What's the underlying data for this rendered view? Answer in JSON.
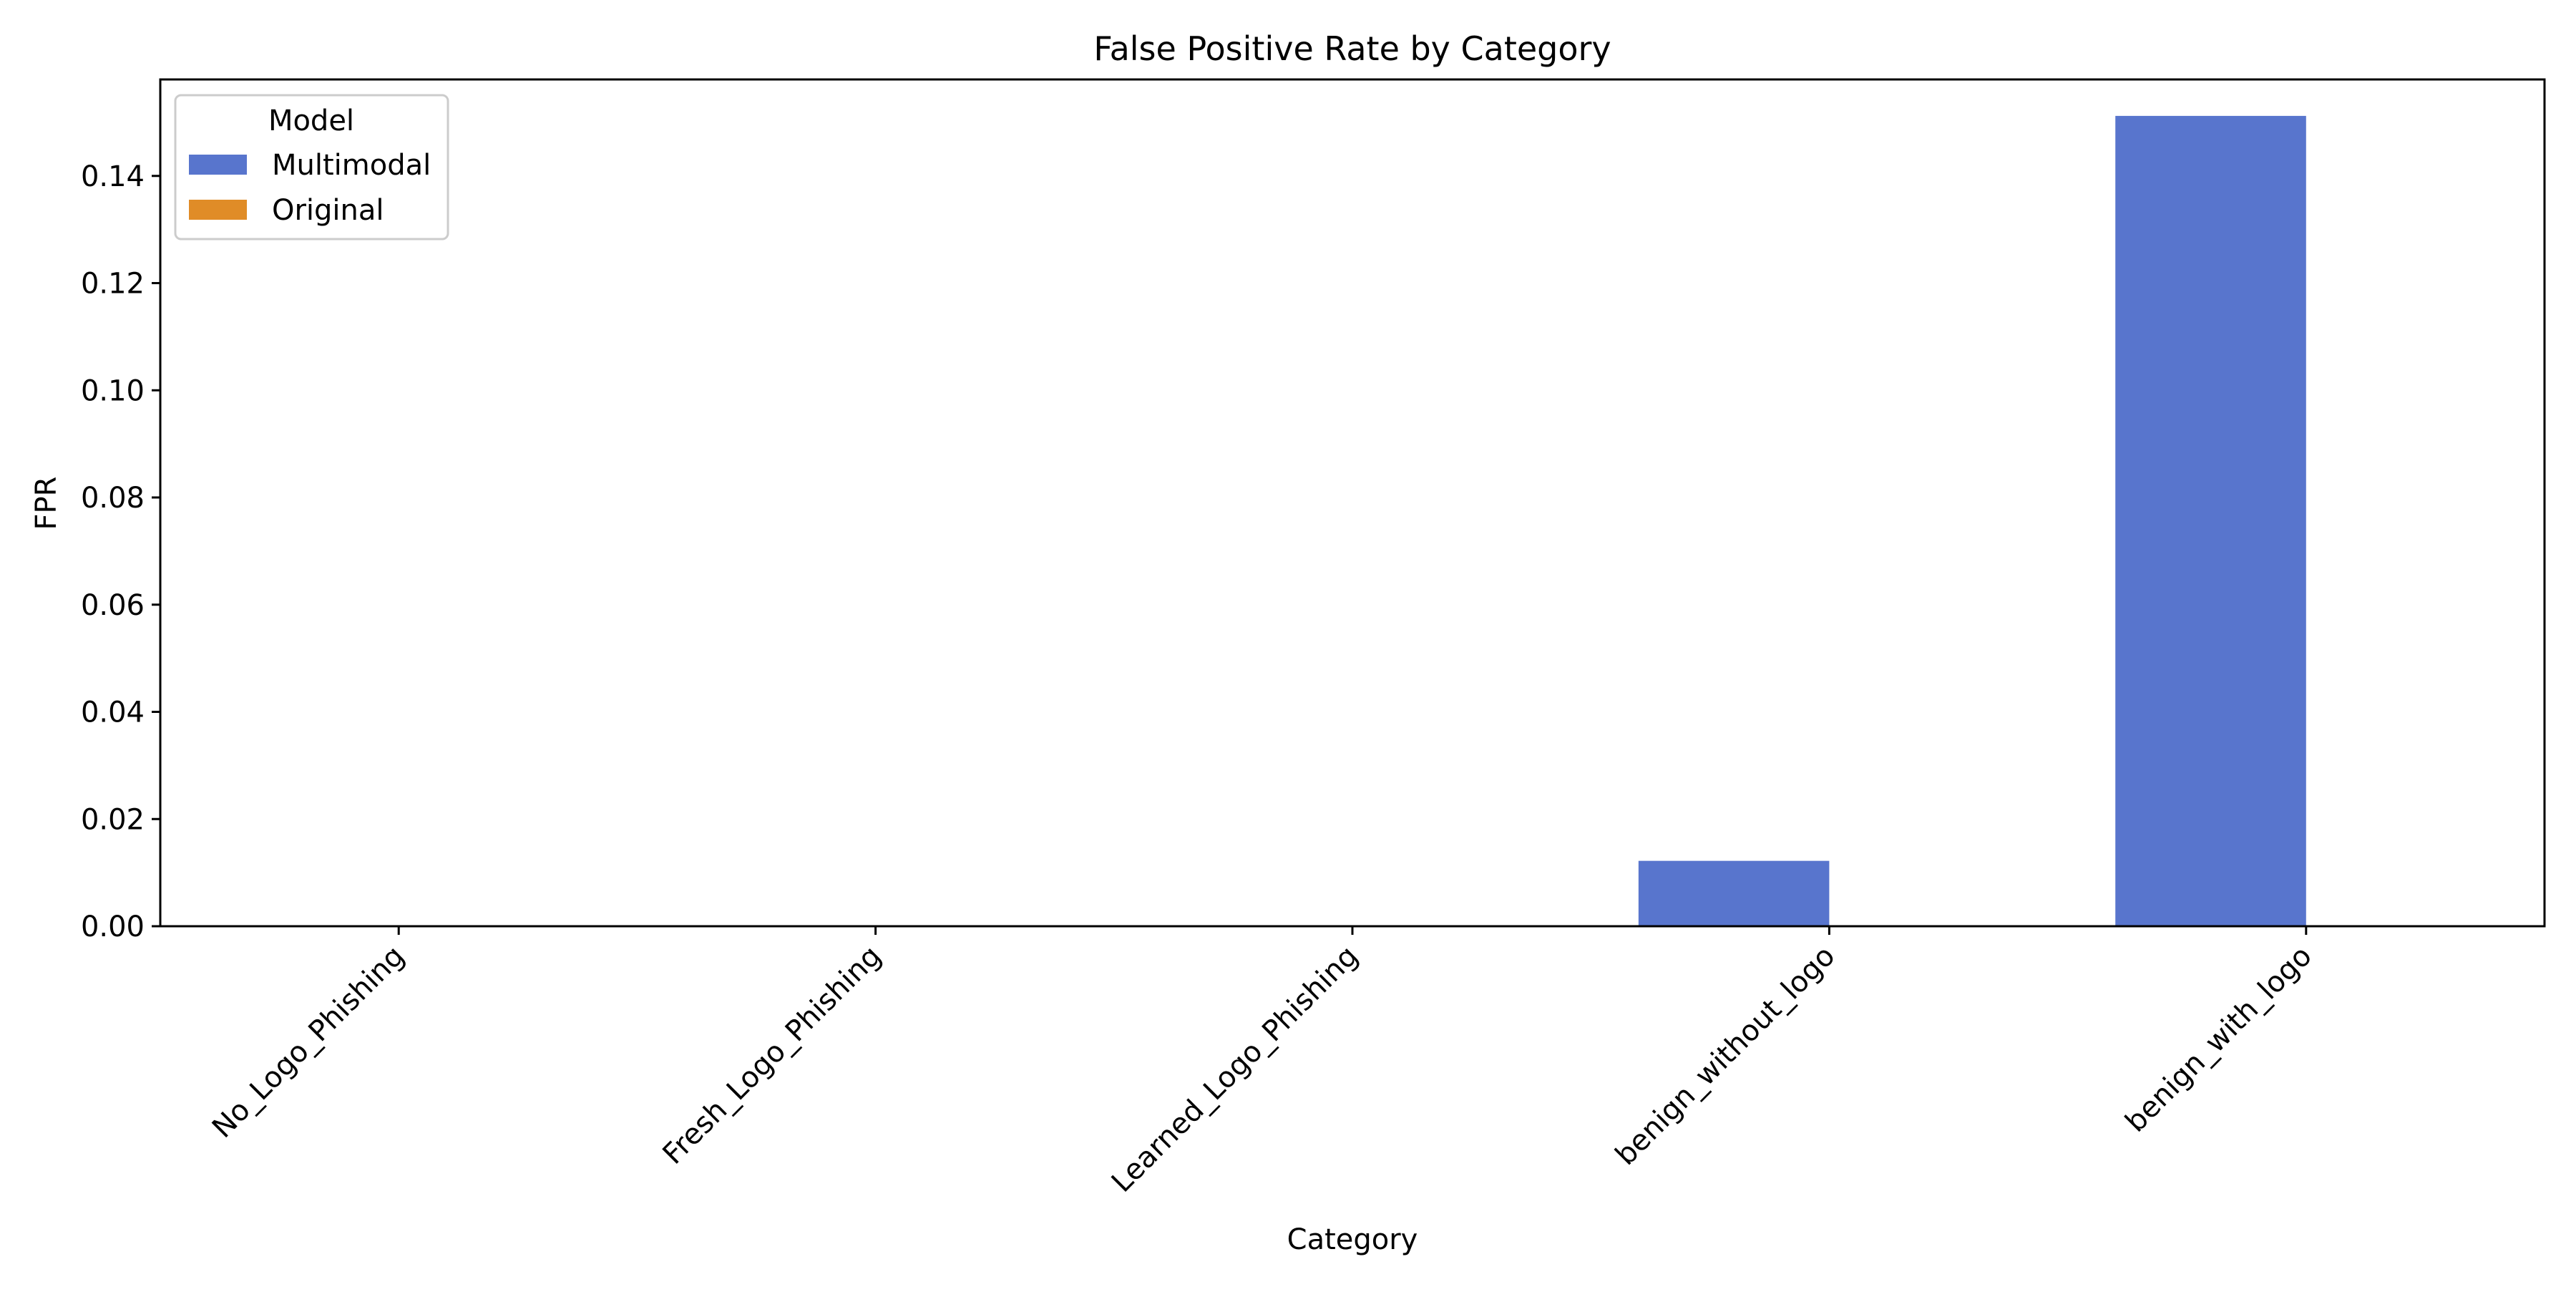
{
  "chart_data": {
    "type": "bar",
    "title": "False Positive Rate by Category",
    "xlabel": "Category",
    "ylabel": "FPR",
    "ylim": [
      0,
      0.158
    ],
    "yticks": [
      0.0,
      0.02,
      0.04,
      0.06,
      0.08,
      0.1,
      0.12,
      0.14
    ],
    "ytick_labels": [
      "0.00",
      "0.02",
      "0.04",
      "0.06",
      "0.08",
      "0.10",
      "0.12",
      "0.14"
    ],
    "categories": [
      "No_Logo_Phishing",
      "Fresh_Logo_Phishing",
      "Learned_Logo_Phishing",
      "benign_without_logo",
      "benign_with_logo"
    ],
    "series": [
      {
        "name": "Multimodal",
        "color": "#5875cd",
        "values": [
          0.0,
          0.0,
          0.0,
          0.0122,
          0.1512
        ]
      },
      {
        "name": "Original",
        "color": "#e08c27",
        "values": [
          0.0,
          0.0,
          0.0,
          0.0,
          0.0
        ]
      }
    ],
    "legend": {
      "title": "Model",
      "position": "top-left"
    },
    "grid": false
  }
}
